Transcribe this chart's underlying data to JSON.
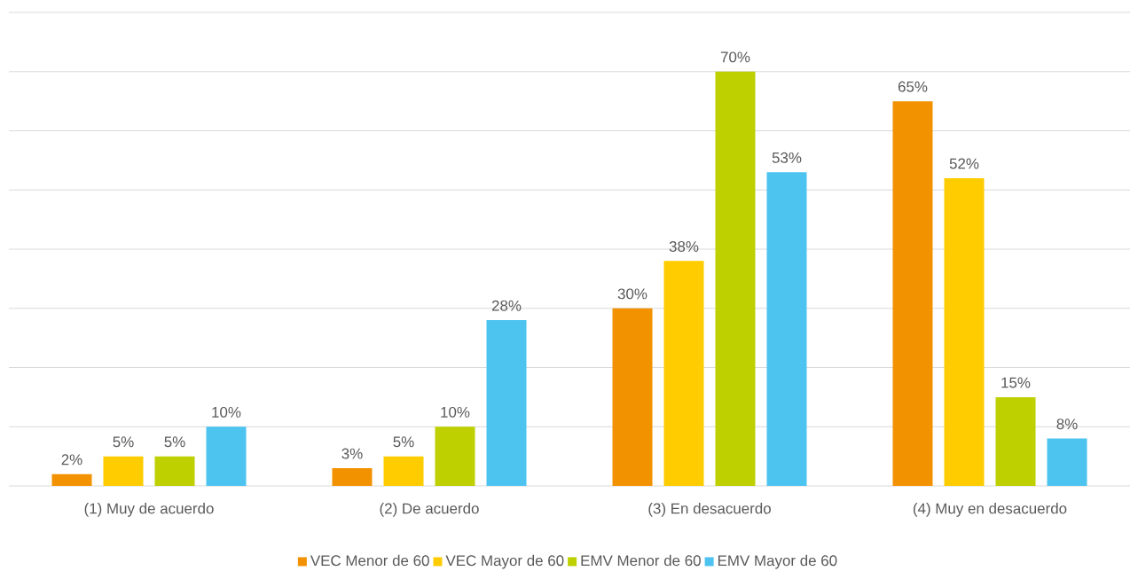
{
  "chart_data": {
    "type": "bar",
    "categories": [
      "(1)  Muy de acuerdo",
      "(2)  De acuerdo",
      "(3)  En desacuerdo",
      "(4)  Muy en desacuerdo"
    ],
    "series": [
      {
        "name": "VEC Menor de 60",
        "color": "#f39200",
        "values": [
          2,
          3,
          30,
          65
        ],
        "value_labels": [
          "2%",
          "3%",
          "30%",
          "65%"
        ]
      },
      {
        "name": "VEC Mayor de 60",
        "color": "#ffcc00",
        "values": [
          5,
          5,
          38,
          52
        ],
        "value_labels": [
          "5%",
          "5%",
          "38%",
          "52%"
        ]
      },
      {
        "name": "EMV Menor de 60",
        "color": "#bed000",
        "values": [
          5,
          10,
          70,
          15
        ],
        "value_labels": [
          "5%",
          "10%",
          "70%",
          "15%"
        ]
      },
      {
        "name": "EMV Mayor de 60",
        "color": "#4dc3f0",
        "values": [
          10,
          28,
          53,
          8
        ],
        "value_labels": [
          "10%",
          "28%",
          "53%",
          "8%"
        ]
      }
    ],
    "ylim": [
      0,
      80
    ],
    "yticks": [
      {
        "value": 0,
        "label": null
      },
      {
        "value": 10,
        "label": null
      },
      {
        "value": 20,
        "label": null
      },
      {
        "value": 30,
        "label": null
      },
      {
        "value": 40,
        "label": null
      },
      {
        "value": 50,
        "label": null
      },
      {
        "value": 60,
        "label": null
      },
      {
        "value": 70,
        "label": null
      },
      {
        "value": 80,
        "label": null
      }
    ],
    "tick_labels": "x",
    "grid": "y",
    "legend": "bottom"
  }
}
